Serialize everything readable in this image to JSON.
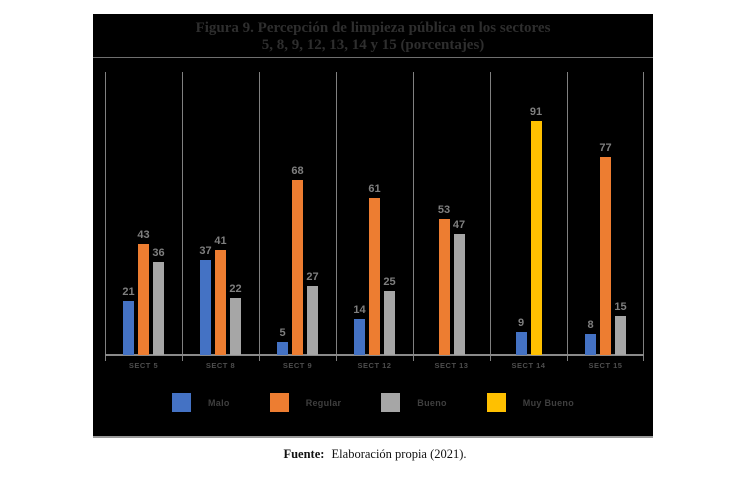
{
  "chart_data": {
    "type": "bar",
    "title_line1": "Figura 9. Percepción de limpieza pública en los sectores",
    "title_line2": "5, 8, 9, 12, 13, 14 y 15 (porcentajes)",
    "categories": [
      "SECT 5",
      "SECT 8",
      "SECT 9",
      "SECT 12",
      "SECT 13",
      "SECT 14",
      "SECT 15"
    ],
    "series": [
      {
        "name": "Malo",
        "color": "#4472C4",
        "values": [
          21,
          37,
          5,
          14,
          null,
          9,
          8
        ]
      },
      {
        "name": "Regular",
        "color": "#ED7D31",
        "values": [
          43,
          41,
          68,
          61,
          53,
          null,
          77
        ]
      },
      {
        "name": "Bueno",
        "color": "#A6A6A6",
        "values": [
          36,
          22,
          27,
          25,
          47,
          null,
          15
        ]
      },
      {
        "name": "Muy Bueno",
        "color": "#FFC000",
        "values": [
          null,
          null,
          null,
          null,
          null,
          91,
          null
        ]
      }
    ],
    "ylim": [
      0,
      110
    ],
    "xlabel": "",
    "ylabel": "",
    "grid": "vertical-separators",
    "legend_position": "bottom",
    "value_labels": true,
    "background": "#000000",
    "label_color": "#7f7f7f",
    "axis_color": "#8a8a8a"
  },
  "footer": {
    "label": "Fuente:",
    "text": "Elaboración propia (2021)."
  }
}
